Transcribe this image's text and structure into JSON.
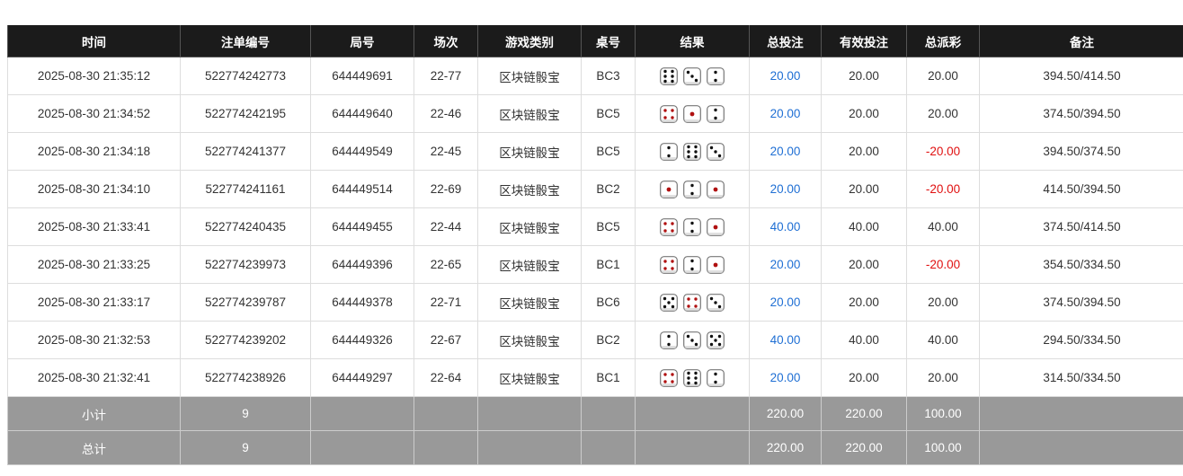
{
  "headers": [
    "时间",
    "注单编号",
    "局号",
    "场次",
    "游戏类别",
    "桌号",
    "结果",
    "总投注",
    "有效投注",
    "总派彩",
    "备注"
  ],
  "colors": {
    "header_bg": "#1b1b1b",
    "footer_bg": "#999999",
    "bet_blue": "#1f6fd4",
    "loss_red": "#e01010",
    "die_red_dot": "#b01010"
  },
  "rows": [
    {
      "time": "2025-08-30 21:35:12",
      "order": "522774242773",
      "round": "644449691",
      "session": "22-77",
      "game": "区块链骰宝",
      "table": "BC3",
      "dice": [
        6,
        3,
        2
      ],
      "bet": "20.00",
      "valid": "20.00",
      "payout": "20.00",
      "payout_negative": false,
      "note": "394.50/414.50"
    },
    {
      "time": "2025-08-30 21:34:52",
      "order": "522774242195",
      "round": "644449640",
      "session": "22-46",
      "game": "区块链骰宝",
      "table": "BC5",
      "dice": [
        4,
        1,
        2
      ],
      "bet": "20.00",
      "valid": "20.00",
      "payout": "20.00",
      "payout_negative": false,
      "note": "374.50/394.50"
    },
    {
      "time": "2025-08-30 21:34:18",
      "order": "522774241377",
      "round": "644449549",
      "session": "22-45",
      "game": "区块链骰宝",
      "table": "BC5",
      "dice": [
        2,
        6,
        3
      ],
      "bet": "20.00",
      "valid": "20.00",
      "payout": "-20.00",
      "payout_negative": true,
      "note": "394.50/374.50"
    },
    {
      "time": "2025-08-30 21:34:10",
      "order": "522774241161",
      "round": "644449514",
      "session": "22-69",
      "game": "区块链骰宝",
      "table": "BC2",
      "dice": [
        1,
        2,
        1
      ],
      "bet": "20.00",
      "valid": "20.00",
      "payout": "-20.00",
      "payout_negative": true,
      "note": "414.50/394.50"
    },
    {
      "time": "2025-08-30 21:33:41",
      "order": "522774240435",
      "round": "644449455",
      "session": "22-44",
      "game": "区块链骰宝",
      "table": "BC5",
      "dice": [
        4,
        2,
        1
      ],
      "bet": "40.00",
      "valid": "40.00",
      "payout": "40.00",
      "payout_negative": false,
      "note": "374.50/414.50"
    },
    {
      "time": "2025-08-30 21:33:25",
      "order": "522774239973",
      "round": "644449396",
      "session": "22-65",
      "game": "区块链骰宝",
      "table": "BC1",
      "dice": [
        4,
        2,
        1
      ],
      "bet": "20.00",
      "valid": "20.00",
      "payout": "-20.00",
      "payout_negative": true,
      "note": "354.50/334.50"
    },
    {
      "time": "2025-08-30 21:33:17",
      "order": "522774239787",
      "round": "644449378",
      "session": "22-71",
      "game": "区块链骰宝",
      "table": "BC6",
      "dice": [
        5,
        4,
        3
      ],
      "bet": "20.00",
      "valid": "20.00",
      "payout": "20.00",
      "payout_negative": false,
      "note": "374.50/394.50"
    },
    {
      "time": "2025-08-30 21:32:53",
      "order": "522774239202",
      "round": "644449326",
      "session": "22-67",
      "game": "区块链骰宝",
      "table": "BC2",
      "dice": [
        2,
        3,
        5
      ],
      "bet": "40.00",
      "valid": "40.00",
      "payout": "40.00",
      "payout_negative": false,
      "note": "294.50/334.50"
    },
    {
      "time": "2025-08-30 21:32:41",
      "order": "522774238926",
      "round": "644449297",
      "session": "22-64",
      "game": "区块链骰宝",
      "table": "BC1",
      "dice": [
        4,
        6,
        2
      ],
      "bet": "20.00",
      "valid": "20.00",
      "payout": "20.00",
      "payout_negative": false,
      "note": "314.50/334.50"
    }
  ],
  "subtotal": {
    "label": "小计",
    "count": "9",
    "bet": "220.00",
    "valid": "220.00",
    "payout": "100.00"
  },
  "total": {
    "label": "总计",
    "count": "9",
    "bet": "220.00",
    "valid": "220.00",
    "payout": "100.00"
  }
}
